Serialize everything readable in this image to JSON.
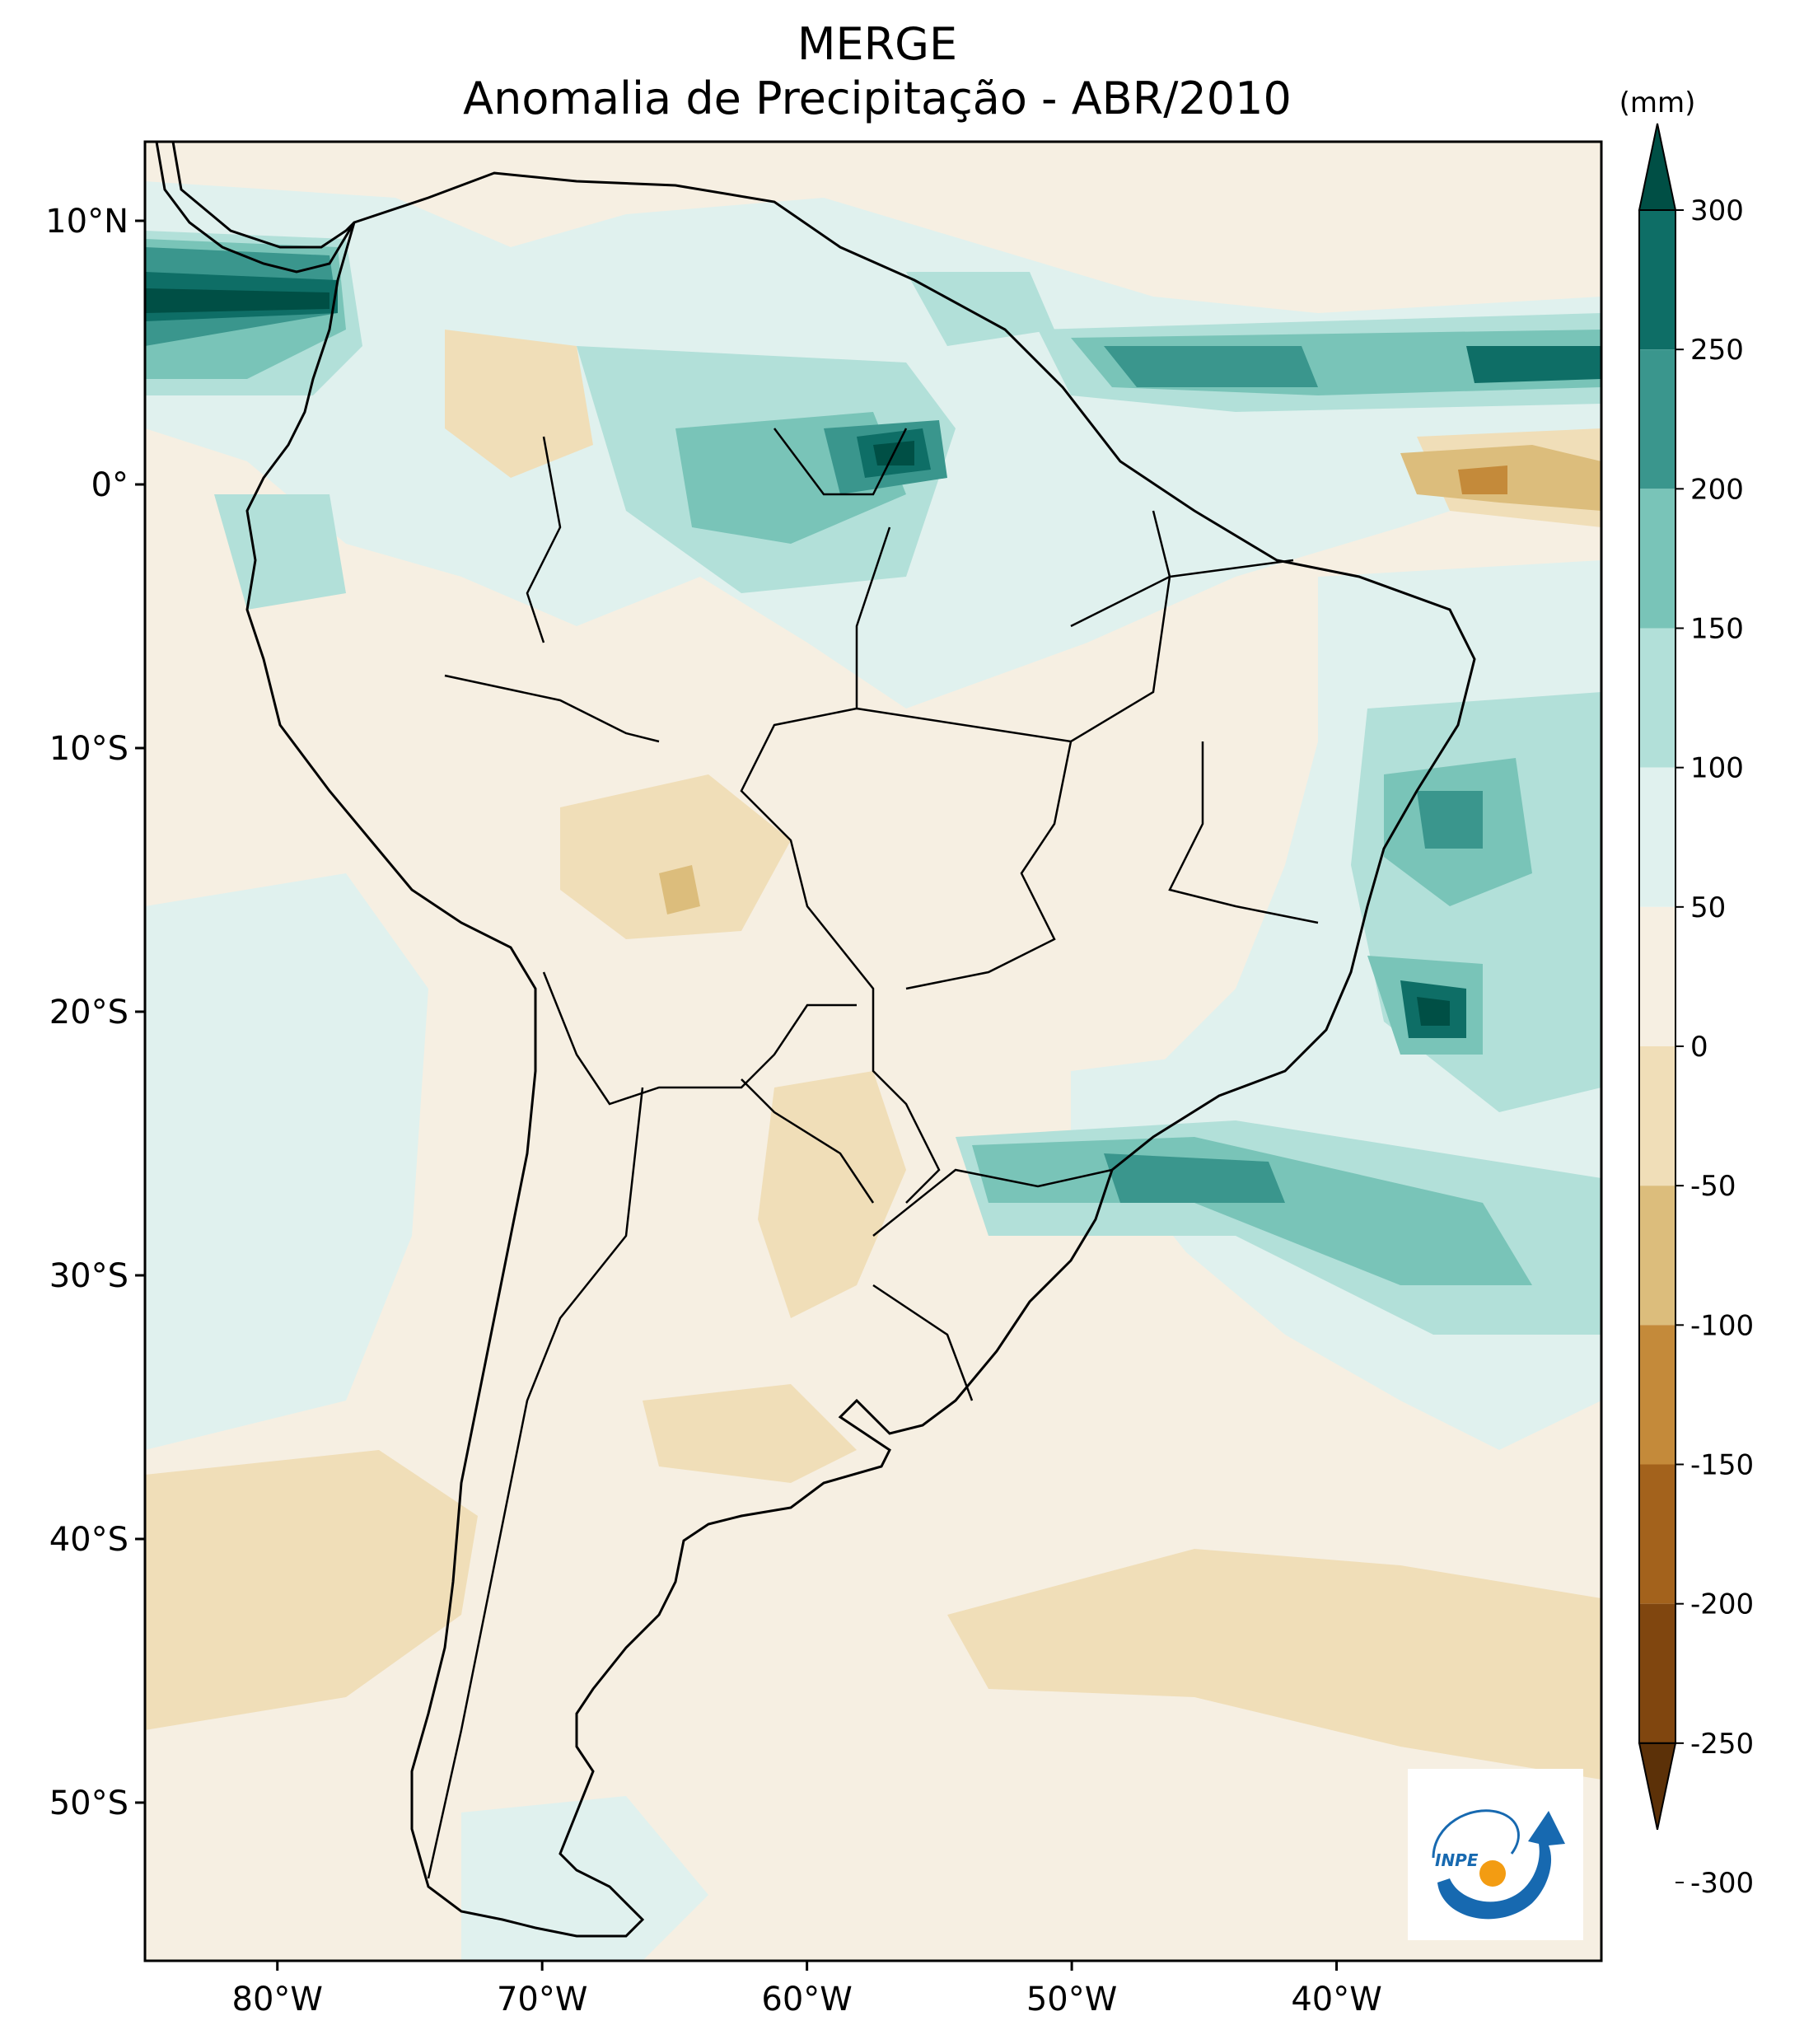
{
  "title": {
    "line1": "MERGE",
    "line2": "Anomalia de Precipitação - ABR/2010"
  },
  "map": {
    "extent": {
      "lon_min": -85,
      "lon_max": -30,
      "lat_min": -56,
      "lat_max": 13
    },
    "lon_ticks": [
      {
        "lon": -80,
        "label": "80°W"
      },
      {
        "lon": -70,
        "label": "70°W"
      },
      {
        "lon": -60,
        "label": "60°W"
      },
      {
        "lon": -50,
        "label": "50°W"
      },
      {
        "lon": -40,
        "label": "40°W"
      }
    ],
    "lat_ticks": [
      {
        "lat": 10,
        "label": "10°N"
      },
      {
        "lat": 0,
        "label": "0°"
      },
      {
        "lat": -10,
        "label": "10°S"
      },
      {
        "lat": -20,
        "label": "20°S"
      },
      {
        "lat": -30,
        "label": "30°S"
      },
      {
        "lat": -40,
        "label": "40°S"
      },
      {
        "lat": -50,
        "label": "50°S"
      }
    ]
  },
  "colorbar": {
    "unit": "(mm)",
    "levels": [
      "300",
      "250",
      "200",
      "150",
      "100",
      "50",
      "0",
      "-50",
      "-100",
      "-150",
      "-200",
      "-250",
      "-300"
    ],
    "colors": [
      "#004f45",
      "#0e6e66",
      "#3a968d",
      "#79c4b8",
      "#b2e0d9",
      "#e0f1ee",
      "#f6efe2",
      "#f0deb8",
      "#dcbd7c",
      "#c48a3a",
      "#a3621c",
      "#80460f",
      "#5c3108"
    ]
  },
  "logo": {
    "text": "INPE"
  }
}
